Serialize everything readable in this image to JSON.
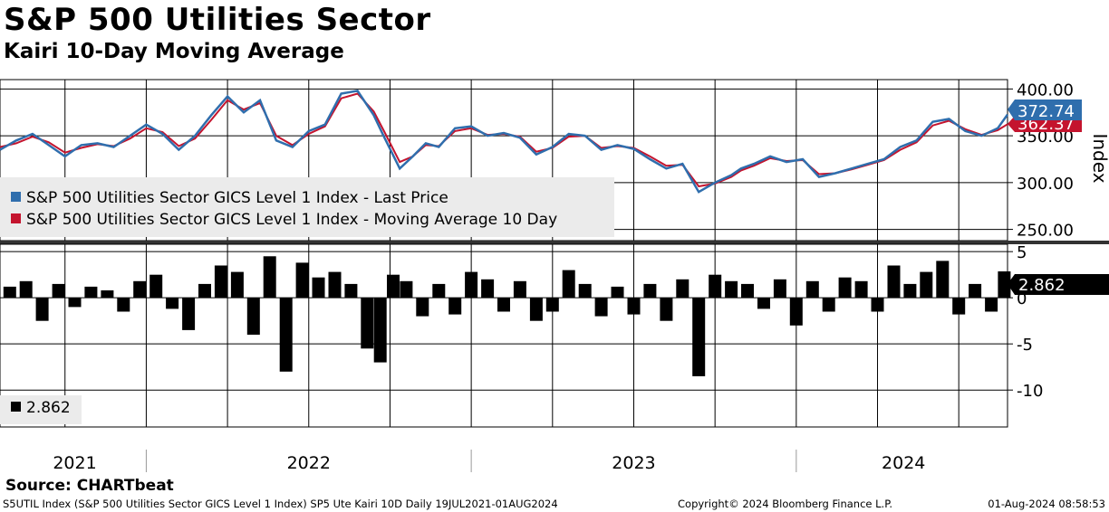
{
  "colors": {
    "price": "#2f6ead",
    "ma": "#c4142e",
    "bars": "#000000",
    "grid": "#000000",
    "legend_bg": "#ebebeb"
  },
  "header": {
    "title": "S&P 500 Utilities Sector",
    "subtitle": "Kairi 10-Day Moving Average"
  },
  "footer": {
    "source": "Source: CHARTbeat",
    "left": "S5UTIL Index (S&P 500 Utilities Sector GICS Level 1 Index) SP5 Ute Kairi 10D  Daily 19JUL2021-01AUG2024",
    "middle": "Copyright© 2024 Bloomberg Finance L.P.",
    "right": "01-Aug-2024 08:58:53"
  },
  "chart_data": [
    {
      "type": "line",
      "title": "S&P 500 Utilities Sector",
      "ylabel": "Index",
      "ylim": [
        238,
        410
      ],
      "y_ticks": [
        "400.00",
        "350.00",
        "300.00",
        "250.00"
      ],
      "y_tick_values": [
        400,
        350,
        300,
        250
      ],
      "x_range": [
        2021.55,
        2024.65
      ],
      "x_tick_labels": [
        "2021",
        "2022",
        "2023",
        "2024"
      ],
      "legend": [
        "S&P 500 Utilities Sector GICS Level 1 Index - Last Price",
        "S&P 500 Utilities Sector GICS Level 1 Index - Moving Average 10 Day"
      ],
      "last_price_label": "372.74",
      "moving_average_label": "362.37",
      "series": [
        {
          "name": "Last Price",
          "x": [
            2021.55,
            2021.6,
            2021.65,
            2021.7,
            2021.75,
            2021.8,
            2021.85,
            2021.9,
            2021.95,
            2022.0,
            2022.05,
            2022.1,
            2022.15,
            2022.2,
            2022.25,
            2022.3,
            2022.35,
            2022.4,
            2022.45,
            2022.5,
            2022.55,
            2022.6,
            2022.65,
            2022.7,
            2022.73,
            2022.78,
            2022.82,
            2022.86,
            2022.9,
            2022.95,
            2023.0,
            2023.05,
            2023.1,
            2023.15,
            2023.2,
            2023.25,
            2023.3,
            2023.35,
            2023.4,
            2023.45,
            2023.5,
            2023.55,
            2023.6,
            2023.65,
            2023.7,
            2023.75,
            2023.8,
            2023.83,
            2023.87,
            2023.92,
            2023.97,
            2024.02,
            2024.07,
            2024.12,
            2024.17,
            2024.22,
            2024.27,
            2024.32,
            2024.37,
            2024.42,
            2024.47,
            2024.52,
            2024.57,
            2024.62,
            2024.65
          ],
          "values": [
            335,
            345,
            352,
            340,
            328,
            340,
            342,
            338,
            350,
            362,
            352,
            335,
            350,
            372,
            392,
            375,
            388,
            345,
            338,
            355,
            362,
            395,
            398,
            372,
            350,
            315,
            328,
            342,
            338,
            358,
            360,
            350,
            353,
            348,
            330,
            338,
            352,
            350,
            335,
            340,
            336,
            325,
            315,
            320,
            290,
            300,
            308,
            315,
            320,
            328,
            322,
            325,
            306,
            310,
            315,
            320,
            325,
            338,
            345,
            365,
            368,
            355,
            350,
            358,
            372.74
          ]
        },
        {
          "name": "Moving Average 10 Day",
          "x": [
            2021.55,
            2021.6,
            2021.65,
            2021.7,
            2021.75,
            2021.8,
            2021.85,
            2021.9,
            2021.95,
            2022.0,
            2022.05,
            2022.1,
            2022.15,
            2022.2,
            2022.25,
            2022.3,
            2022.35,
            2022.4,
            2022.45,
            2022.5,
            2022.55,
            2022.6,
            2022.65,
            2022.7,
            2022.73,
            2022.78,
            2022.82,
            2022.86,
            2022.9,
            2022.95,
            2023.0,
            2023.05,
            2023.1,
            2023.15,
            2023.2,
            2023.25,
            2023.3,
            2023.35,
            2023.4,
            2023.45,
            2023.5,
            2023.55,
            2023.6,
            2023.65,
            2023.7,
            2023.75,
            2023.8,
            2023.83,
            2023.87,
            2023.92,
            2023.97,
            2024.02,
            2024.07,
            2024.12,
            2024.17,
            2024.22,
            2024.27,
            2024.32,
            2024.37,
            2024.42,
            2024.47,
            2024.52,
            2024.57,
            2024.62,
            2024.65
          ],
          "values": [
            338,
            342,
            349,
            343,
            332,
            337,
            341,
            339,
            347,
            358,
            354,
            339,
            347,
            367,
            388,
            378,
            385,
            350,
            340,
            352,
            360,
            390,
            395,
            376,
            356,
            322,
            328,
            340,
            339,
            355,
            358,
            351,
            352,
            349,
            333,
            337,
            349,
            350,
            337,
            339,
            337,
            328,
            318,
            319,
            296,
            299,
            306,
            313,
            318,
            326,
            323,
            324,
            309,
            310,
            314,
            319,
            324,
            335,
            343,
            361,
            366,
            357,
            351,
            356,
            362.37
          ]
        }
      ]
    },
    {
      "type": "bar",
      "title": "Kairi 10-Day Moving Average",
      "ylim": [
        -14,
        5.8
      ],
      "y_ticks": [
        "5",
        "0",
        "-5",
        "-10"
      ],
      "y_tick_values": [
        5,
        0,
        -5,
        -10
      ],
      "x_range": [
        2021.55,
        2024.65
      ],
      "legend": [
        "2.862"
      ],
      "last_value_label": "2.862",
      "x": [
        2021.58,
        2021.63,
        2021.68,
        2021.73,
        2021.78,
        2021.83,
        2021.88,
        2021.93,
        2021.98,
        2022.03,
        2022.08,
        2022.13,
        2022.18,
        2022.23,
        2022.28,
        2022.33,
        2022.38,
        2022.43,
        2022.48,
        2022.53,
        2022.58,
        2022.63,
        2022.68,
        2022.72,
        2022.76,
        2022.8,
        2022.85,
        2022.9,
        2022.95,
        2023.0,
        2023.05,
        2023.1,
        2023.15,
        2023.2,
        2023.25,
        2023.3,
        2023.35,
        2023.4,
        2023.45,
        2023.5,
        2023.55,
        2023.6,
        2023.65,
        2023.7,
        2023.75,
        2023.8,
        2023.85,
        2023.9,
        2023.95,
        2024.0,
        2024.05,
        2024.1,
        2024.15,
        2024.2,
        2024.25,
        2024.3,
        2024.35,
        2024.4,
        2024.45,
        2024.5,
        2024.55,
        2024.6,
        2024.64
      ],
      "values": [
        1.2,
        1.8,
        -2.5,
        1.5,
        -1.0,
        1.2,
        0.8,
        -1.5,
        1.8,
        2.5,
        -1.2,
        -3.5,
        1.5,
        3.5,
        2.8,
        -4.0,
        4.5,
        -8.0,
        3.8,
        2.2,
        2.8,
        1.5,
        -5.5,
        -7.0,
        2.5,
        1.8,
        -2.0,
        1.5,
        -1.8,
        2.8,
        2.0,
        -1.5,
        1.8,
        -2.5,
        -1.5,
        3.0,
        1.5,
        -2.0,
        1.2,
        -1.8,
        1.5,
        -2.5,
        2.0,
        -8.5,
        2.5,
        1.8,
        1.5,
        -1.2,
        2.0,
        -3.0,
        1.8,
        -1.5,
        2.2,
        1.8,
        -1.5,
        3.5,
        1.5,
        2.8,
        4.0,
        -1.8,
        1.5,
        -1.5,
        2.862
      ]
    }
  ]
}
